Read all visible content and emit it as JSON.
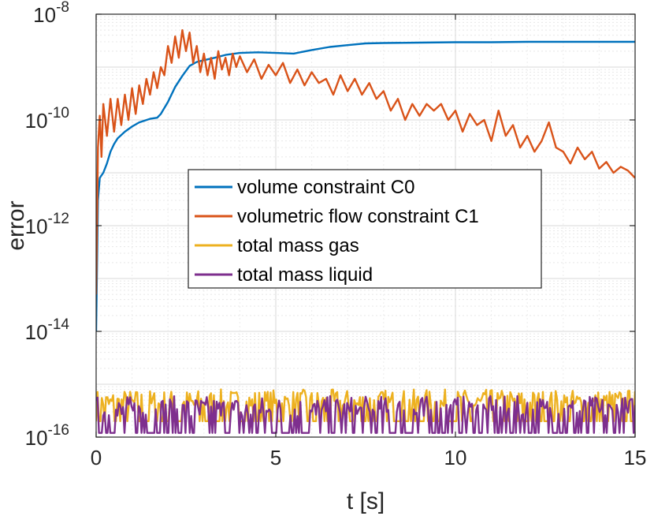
{
  "chart_data": {
    "type": "line",
    "title": "",
    "xlabel": "t [s]",
    "ylabel": "error",
    "xlim": [
      0,
      15
    ],
    "ylim": [
      1e-16,
      1e-08
    ],
    "yscale": "log",
    "grid": true,
    "minor_grid": true,
    "legend_position": "center",
    "x_ticks": [
      {
        "value": 0,
        "label": "0"
      },
      {
        "value": 5,
        "label": "5"
      },
      {
        "value": 10,
        "label": "10"
      },
      {
        "value": 15,
        "label": "15"
      }
    ],
    "y_ticks": [
      {
        "value": 1e-16,
        "base": "10",
        "exp": "-16"
      },
      {
        "value": 1e-14,
        "base": "10",
        "exp": "-14"
      },
      {
        "value": 1e-12,
        "base": "10",
        "exp": "-12"
      },
      {
        "value": 1e-10,
        "base": "10",
        "exp": "-10"
      },
      {
        "value": 1e-08,
        "base": "10",
        "exp": "-8"
      }
    ],
    "series": [
      {
        "name": "volume constraint C0",
        "color": "#0072BD",
        "x": [
          0,
          0.05,
          0.1,
          0.2,
          0.3,
          0.4,
          0.5,
          0.6,
          0.8,
          1.0,
          1.2,
          1.5,
          1.7,
          1.8,
          2.0,
          2.2,
          2.4,
          2.6,
          2.8,
          3.0,
          3.3,
          3.6,
          4.0,
          4.5,
          5.0,
          5.5,
          6.0,
          6.5,
          7.0,
          7.5,
          8.0,
          9.0,
          10.0,
          11.0,
          12.0,
          13.0,
          14.0,
          15.0
        ],
        "y": [
          1e-14,
          3e-12,
          8e-12,
          1e-11,
          1.5e-11,
          2.5e-11,
          3.5e-11,
          4.5e-11,
          6e-11,
          7.5e-11,
          9e-11,
          1.05e-10,
          1.1e-10,
          1.3e-10,
          2.2e-10,
          4.2e-10,
          6.8e-10,
          1.05e-09,
          1.25e-09,
          1.35e-09,
          1.5e-09,
          1.7e-09,
          1.85e-09,
          1.9e-09,
          1.85e-09,
          1.8e-09,
          2.1e-09,
          2.4e-09,
          2.6e-09,
          2.8e-09,
          2.85e-09,
          2.9e-09,
          2.95e-09,
          2.95e-09,
          3e-09,
          3e-09,
          3e-09,
          3e-09
        ]
      },
      {
        "name": "volumetric flow constraint C1",
        "color": "#D95319",
        "x": [
          0,
          0.05,
          0.1,
          0.15,
          0.2,
          0.3,
          0.4,
          0.5,
          0.6,
          0.7,
          0.8,
          0.9,
          1.0,
          1.1,
          1.2,
          1.3,
          1.4,
          1.5,
          1.6,
          1.7,
          1.8,
          1.9,
          2.0,
          2.1,
          2.2,
          2.3,
          2.4,
          2.5,
          2.6,
          2.7,
          2.8,
          2.9,
          3.0,
          3.1,
          3.2,
          3.3,
          3.4,
          3.5,
          3.6,
          3.7,
          3.8,
          3.9,
          4.0,
          4.2,
          4.4,
          4.6,
          4.8,
          5.0,
          5.2,
          5.4,
          5.6,
          5.8,
          6.0,
          6.2,
          6.4,
          6.6,
          6.8,
          7.0,
          7.2,
          7.4,
          7.6,
          7.8,
          8.0,
          8.2,
          8.4,
          8.6,
          8.8,
          9.0,
          9.2,
          9.4,
          9.6,
          9.8,
          10.0,
          10.2,
          10.4,
          10.6,
          10.8,
          11.0,
          11.2,
          11.4,
          11.6,
          11.8,
          12.0,
          12.2,
          12.4,
          12.6,
          12.8,
          13.0,
          13.2,
          13.4,
          13.6,
          13.8,
          14.0,
          14.2,
          14.4,
          14.6,
          14.8,
          15.0
        ],
        "y": [
          5e-14,
          3e-11,
          1.2e-10,
          2e-11,
          2e-10,
          5e-11,
          2.5e-10,
          6e-11,
          2.5e-10,
          8e-11,
          3e-10,
          1e-10,
          4e-10,
          1.3e-10,
          4.5e-10,
          2e-10,
          6e-10,
          3e-10,
          8e-10,
          4e-10,
          1e-09,
          7e-10,
          2.5e-09,
          1.2e-09,
          3.8e-09,
          1.5e-09,
          5e-09,
          2e-09,
          4.5e-09,
          1.2e-09,
          2.5e-09,
          8e-10,
          1.8e-09,
          7e-10,
          1.5e-09,
          6e-10,
          2e-09,
          9e-10,
          1.5e-09,
          7e-10,
          1.8e-09,
          1e-09,
          1.6e-09,
          8e-10,
          1.4e-09,
          6e-10,
          1.1e-09,
          7e-10,
          1.2e-09,
          5e-10,
          9e-10,
          4.5e-10,
          8e-10,
          5e-10,
          6e-10,
          3e-10,
          7e-10,
          3.5e-10,
          6e-10,
          3e-10,
          5e-10,
          2.5e-10,
          3.5e-10,
          1.5e-10,
          2.5e-10,
          1e-10,
          2e-10,
          1.2e-10,
          2e-10,
          1.5e-10,
          2e-10,
          1e-10,
          1.5e-10,
          6e-11,
          1.3e-10,
          8e-11,
          1e-10,
          4e-11,
          1.5e-10,
          5e-11,
          8e-11,
          3e-11,
          5e-11,
          2.5e-11,
          4e-11,
          9e-11,
          3e-11,
          2.5e-11,
          1.5e-11,
          3e-11,
          1.8e-11,
          2.5e-11,
          1.2e-11,
          1.6e-11,
          1e-11,
          1.3e-11,
          1.1e-11,
          8e-12
        ]
      },
      {
        "name": "total mass gas",
        "color": "#EDB120",
        "low": 2e-16,
        "high": 8e-16
      },
      {
        "name": "total mass liquid",
        "color": "#7E2F8E",
        "low": 1.2e-16,
        "high": 6e-16
      }
    ]
  }
}
